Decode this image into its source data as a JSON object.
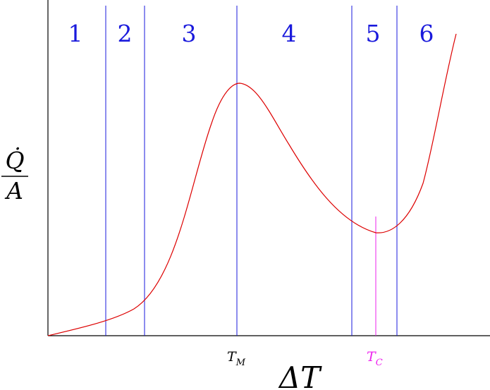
{
  "regions": [
    {
      "label": "1"
    },
    {
      "label": "2"
    },
    {
      "label": "3"
    },
    {
      "label": "4"
    },
    {
      "label": "5"
    },
    {
      "label": "6"
    }
  ],
  "markers": {
    "tm": {
      "main": "T",
      "sub": "M"
    },
    "tc": {
      "main": "T",
      "sub": "C"
    }
  },
  "axes": {
    "ylabel_top": "Q̇",
    "ylabel_bottom": "A",
    "xlabel": "ΔT"
  },
  "colors": {
    "curve": "#dd0000",
    "boundary": "#1a1adc",
    "region_label": "#1a1adc",
    "critical": "#ee22ee",
    "axis": "#000000"
  }
}
